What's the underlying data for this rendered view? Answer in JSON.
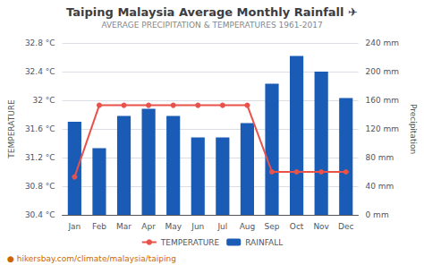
{
  "chart_data": {
    "type": "bar",
    "title": "Taiping Malaysia Average Monthly Rainfall ✈",
    "subtitle": "AVERAGE PRECIPITATION & TEMPERATURES 1961-2017",
    "categories": [
      "Jan",
      "Feb",
      "Mar",
      "Apr",
      "May",
      "Jun",
      "Jul",
      "Aug",
      "Sep",
      "Oct",
      "Nov",
      "Dec"
    ],
    "series": [
      {
        "name": "TEMPERATURE",
        "type": "line",
        "axis": "y",
        "color": "#e8524a",
        "marker": "circle",
        "values": [
          30.93,
          31.93,
          31.93,
          31.93,
          31.93,
          31.93,
          31.93,
          31.93,
          31.0,
          31.0,
          31.0,
          31.0
        ]
      },
      {
        "name": "RAINFALL",
        "type": "bar",
        "axis": "y2",
        "color": "#1a5bb5",
        "values": [
          130,
          93,
          138,
          148,
          138,
          108,
          108,
          128,
          183,
          222,
          200,
          163
        ]
      }
    ],
    "ylabel": "TEMPERATURE",
    "y2label": "Precipitation",
    "ylim": [
      30.4,
      32.8
    ],
    "yticks": [
      {
        "value": 30.4,
        "label": "30.4 °C"
      },
      {
        "value": 30.8,
        "label": "30.8 °C"
      },
      {
        "value": 31.2,
        "label": "31.2 °C"
      },
      {
        "value": 31.6,
        "label": "31.6 °C"
      },
      {
        "value": 32.0,
        "label": "32 °C"
      },
      {
        "value": 32.4,
        "label": "32.4 °C"
      },
      {
        "value": 32.8,
        "label": "32.8 °C"
      }
    ],
    "y2lim": [
      0,
      240
    ],
    "y2ticks": [
      {
        "value": 0,
        "label": "0 mm"
      },
      {
        "value": 40,
        "label": "40 mm"
      },
      {
        "value": 80,
        "label": "80 mm"
      },
      {
        "value": 120,
        "label": "120 mm"
      },
      {
        "value": 160,
        "label": "160 mm"
      },
      {
        "value": 200,
        "label": "200 mm"
      },
      {
        "value": 240,
        "label": "240 mm"
      }
    ],
    "grid": true,
    "legend": "bottom",
    "annotations": [
      {
        "text": "● hikersbay.com/climate/malaysia/taiping",
        "color": "#cc6600"
      }
    ]
  }
}
